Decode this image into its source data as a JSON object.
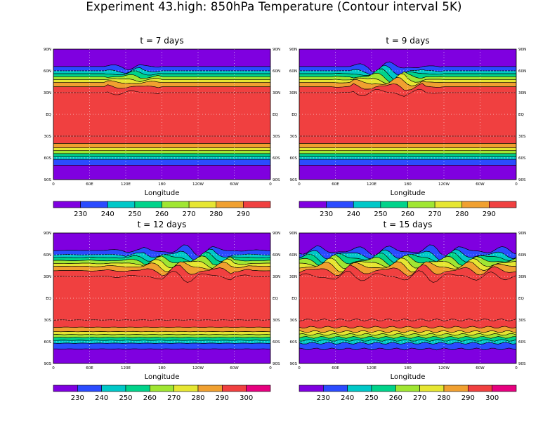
{
  "figure": {
    "title": "Experiment 43.high: 850hPa Temperature (Contour interval 5K)"
  },
  "chart_data": [
    {
      "type": "heatmap",
      "title": "t = 7 days",
      "xlabel": "Longitude",
      "x_ticks": [
        "0",
        "60E",
        "120E",
        "180",
        "120W",
        "60W",
        "0"
      ],
      "y_ticks": [
        "90N",
        "60N",
        "30N",
        "EQ",
        "30S",
        "60S",
        "90S"
      ],
      "xlim": [
        0,
        360
      ],
      "ylim": [
        -90,
        90
      ],
      "contour_interval_K": 5,
      "colorbar_labels": [
        "230",
        "240",
        "250",
        "260",
        "270",
        "280",
        "290"
      ],
      "colorbar_colors": [
        "#7f00e0",
        "#2b4bff",
        "#00c8c8",
        "#00d38a",
        "#a0e632",
        "#e6e632",
        "#f0a030",
        "#f04040"
      ]
    },
    {
      "type": "heatmap",
      "title": "t = 9 days",
      "xlabel": "Longitude",
      "x_ticks": [
        "0",
        "60E",
        "120E",
        "180",
        "120W",
        "60W",
        "0"
      ],
      "y_ticks": [
        "90N",
        "60N",
        "30N",
        "EQ",
        "30S",
        "60S",
        "90S"
      ],
      "xlim": [
        0,
        360
      ],
      "ylim": [
        -90,
        90
      ],
      "contour_interval_K": 5,
      "colorbar_labels": [
        "230",
        "240",
        "250",
        "260",
        "270",
        "280",
        "290"
      ],
      "colorbar_colors": [
        "#7f00e0",
        "#2b4bff",
        "#00c8c8",
        "#00d38a",
        "#a0e632",
        "#e6e632",
        "#f0a030",
        "#f04040"
      ]
    },
    {
      "type": "heatmap",
      "title": "t = 12 days",
      "xlabel": "Longitude",
      "x_ticks": [
        "0",
        "60E",
        "120E",
        "180",
        "120W",
        "60W",
        "0"
      ],
      "y_ticks": [
        "90N",
        "60N",
        "30N",
        "EQ",
        "30S",
        "60S",
        "90S"
      ],
      "xlim": [
        0,
        360
      ],
      "ylim": [
        -90,
        90
      ],
      "contour_interval_K": 5,
      "colorbar_labels": [
        "230",
        "240",
        "250",
        "260",
        "270",
        "280",
        "290",
        "300"
      ],
      "colorbar_colors": [
        "#7f00e0",
        "#2b4bff",
        "#00c8c8",
        "#00d38a",
        "#a0e632",
        "#e6e632",
        "#f0a030",
        "#f04040",
        "#e6007f"
      ]
    },
    {
      "type": "heatmap",
      "title": "t = 15 days",
      "xlabel": "Longitude",
      "x_ticks": [
        "0",
        "60E",
        "120E",
        "180",
        "120W",
        "60W",
        "0"
      ],
      "y_ticks": [
        "90N",
        "60N",
        "30N",
        "EQ",
        "30S",
        "60S",
        "90S"
      ],
      "xlim": [
        0,
        360
      ],
      "ylim": [
        -90,
        90
      ],
      "contour_interval_K": 5,
      "colorbar_labels": [
        "230",
        "240",
        "250",
        "260",
        "270",
        "280",
        "290",
        "300"
      ],
      "colorbar_colors": [
        "#7f00e0",
        "#2b4bff",
        "#00c8c8",
        "#00d38a",
        "#a0e632",
        "#e6e632",
        "#f0a030",
        "#f04040",
        "#e6007f"
      ]
    }
  ]
}
